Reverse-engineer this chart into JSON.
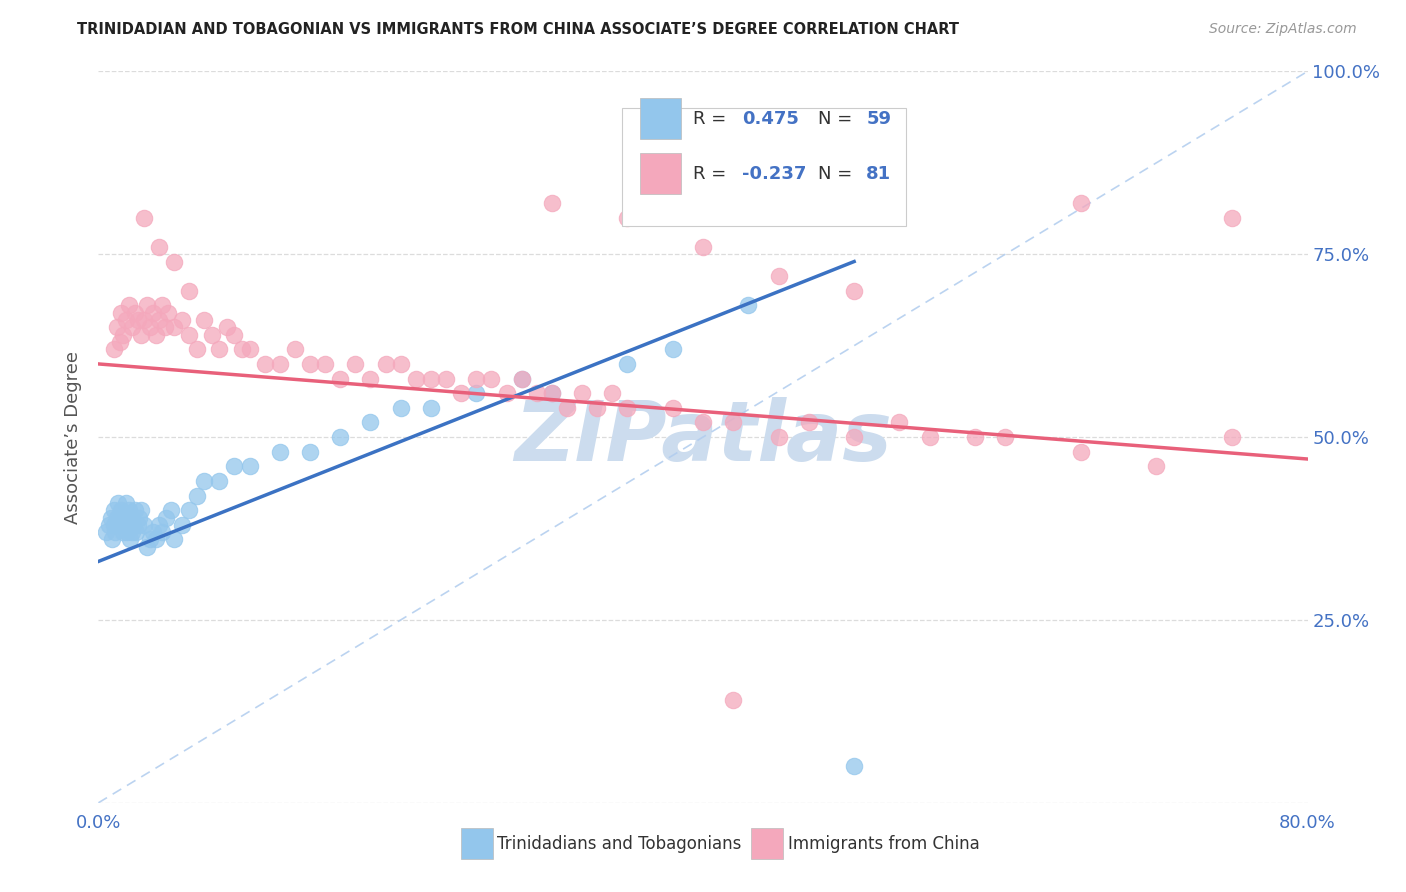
{
  "title": "TRINIDADIAN AND TOBAGONIAN VS IMMIGRANTS FROM CHINA ASSOCIATE’S DEGREE CORRELATION CHART",
  "source": "Source: ZipAtlas.com",
  "ylabel": "Associate’s Degree",
  "xlim": [
    0.0,
    0.8
  ],
  "ylim": [
    0.0,
    1.0
  ],
  "r1": "0.475",
  "n1": "59",
  "r2": "-0.237",
  "n2": "81",
  "series1_color": "#93C6EC",
  "series2_color": "#F4A8BC",
  "trend1_color": "#3B72C3",
  "trend2_color": "#E8607A",
  "diag_color": "#B0CCEE",
  "watermark_color": "#CCDCEE",
  "axis_color": "#4472C4",
  "grid_color": "#DCDCDC",
  "background_color": "#FFFFFF",
  "label1": "Trinidadians and Tobagonians",
  "label2": "Immigrants from China",
  "blue_x": [
    0.005,
    0.007,
    0.008,
    0.009,
    0.01,
    0.01,
    0.011,
    0.012,
    0.013,
    0.013,
    0.014,
    0.015,
    0.015,
    0.016,
    0.017,
    0.018,
    0.018,
    0.019,
    0.02,
    0.02,
    0.021,
    0.022,
    0.022,
    0.023,
    0.024,
    0.025,
    0.026,
    0.027,
    0.028,
    0.03,
    0.032,
    0.034,
    0.036,
    0.038,
    0.04,
    0.042,
    0.045,
    0.048,
    0.05,
    0.055,
    0.06,
    0.065,
    0.07,
    0.08,
    0.09,
    0.1,
    0.12,
    0.14,
    0.16,
    0.18,
    0.2,
    0.22,
    0.25,
    0.28,
    0.3,
    0.35,
    0.38,
    0.43,
    0.5
  ],
  "blue_y": [
    0.37,
    0.38,
    0.39,
    0.36,
    0.38,
    0.4,
    0.37,
    0.39,
    0.38,
    0.41,
    0.39,
    0.38,
    0.4,
    0.37,
    0.38,
    0.39,
    0.41,
    0.37,
    0.38,
    0.4,
    0.36,
    0.37,
    0.39,
    0.38,
    0.4,
    0.37,
    0.38,
    0.39,
    0.4,
    0.38,
    0.35,
    0.36,
    0.37,
    0.36,
    0.38,
    0.37,
    0.39,
    0.4,
    0.36,
    0.38,
    0.4,
    0.42,
    0.44,
    0.44,
    0.46,
    0.46,
    0.48,
    0.48,
    0.5,
    0.52,
    0.54,
    0.54,
    0.56,
    0.58,
    0.56,
    0.6,
    0.62,
    0.68,
    0.05
  ],
  "pink_x": [
    0.01,
    0.012,
    0.014,
    0.015,
    0.016,
    0.018,
    0.02,
    0.022,
    0.024,
    0.026,
    0.028,
    0.03,
    0.032,
    0.034,
    0.036,
    0.038,
    0.04,
    0.042,
    0.044,
    0.046,
    0.05,
    0.055,
    0.06,
    0.065,
    0.07,
    0.075,
    0.08,
    0.085,
    0.09,
    0.095,
    0.1,
    0.11,
    0.12,
    0.13,
    0.14,
    0.15,
    0.16,
    0.17,
    0.18,
    0.19,
    0.2,
    0.21,
    0.22,
    0.23,
    0.24,
    0.25,
    0.26,
    0.27,
    0.28,
    0.29,
    0.3,
    0.31,
    0.32,
    0.33,
    0.34,
    0.35,
    0.38,
    0.4,
    0.42,
    0.45,
    0.47,
    0.5,
    0.53,
    0.55,
    0.58,
    0.6,
    0.65,
    0.7,
    0.75,
    0.3,
    0.35,
    0.4,
    0.45,
    0.5,
    0.03,
    0.04,
    0.05,
    0.06,
    0.42,
    0.65,
    0.75
  ],
  "pink_y": [
    0.62,
    0.65,
    0.63,
    0.67,
    0.64,
    0.66,
    0.68,
    0.65,
    0.67,
    0.66,
    0.64,
    0.66,
    0.68,
    0.65,
    0.67,
    0.64,
    0.66,
    0.68,
    0.65,
    0.67,
    0.65,
    0.66,
    0.64,
    0.62,
    0.66,
    0.64,
    0.62,
    0.65,
    0.64,
    0.62,
    0.62,
    0.6,
    0.6,
    0.62,
    0.6,
    0.6,
    0.58,
    0.6,
    0.58,
    0.6,
    0.6,
    0.58,
    0.58,
    0.58,
    0.56,
    0.58,
    0.58,
    0.56,
    0.58,
    0.56,
    0.56,
    0.54,
    0.56,
    0.54,
    0.56,
    0.54,
    0.54,
    0.52,
    0.52,
    0.5,
    0.52,
    0.5,
    0.52,
    0.5,
    0.5,
    0.5,
    0.48,
    0.46,
    0.5,
    0.82,
    0.8,
    0.76,
    0.72,
    0.7,
    0.8,
    0.76,
    0.74,
    0.7,
    0.14,
    0.82,
    0.8
  ],
  "trend1_x0": 0.0,
  "trend1_x1": 0.5,
  "trend1_y0": 0.33,
  "trend1_y1": 0.74,
  "trend2_x0": 0.0,
  "trend2_x1": 0.8,
  "trend2_y0": 0.6,
  "trend2_y1": 0.47
}
